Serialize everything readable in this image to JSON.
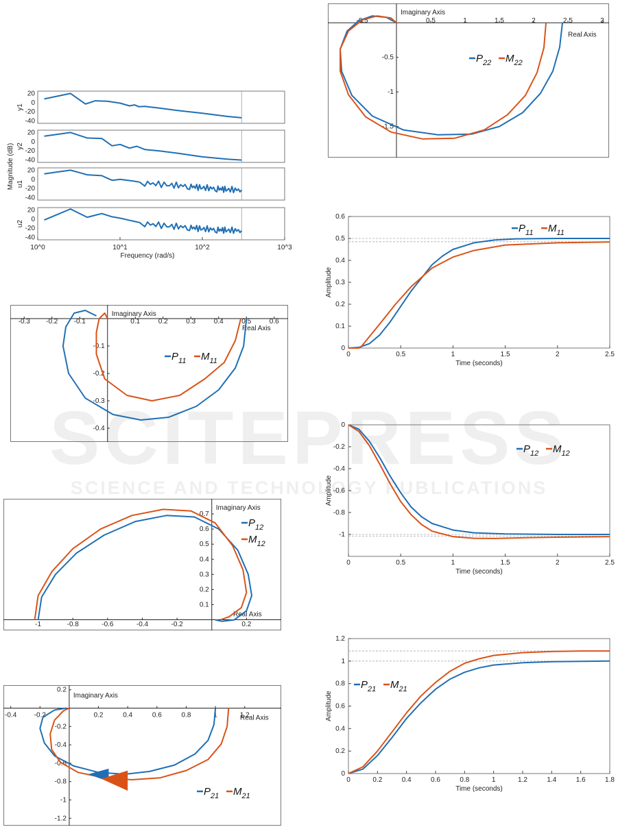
{
  "watermark": {
    "title": "SCITEPRESS",
    "subtitle": "SCIENCE AND TECHNOLOGY PUBLICATIONS"
  },
  "colors": {
    "blue": "#1f6fb4",
    "orange": "#d95319"
  },
  "chart_data": [
    {
      "id": "bode",
      "type": "line",
      "xscale": "log",
      "xlim": [
        1,
        1000
      ],
      "xlabel": "Frequency (rad/s)",
      "ylabel": "Magnitude (dB)",
      "x_ticks": [
        "10^0",
        "10^1",
        "10^2",
        "10^3"
      ],
      "y_ticks": [
        "20",
        "0",
        "-20",
        "-40"
      ],
      "ylim": [
        -45,
        25
      ],
      "subplots": [
        {
          "label": "y1",
          "x": [
            1.2,
            2.5,
            3.8,
            5,
            7,
            10,
            13,
            15,
            17,
            20,
            30,
            50,
            100,
            200,
            300
          ],
          "y": [
            8,
            20,
            -3,
            4,
            3,
            -1,
            -7,
            -5,
            -9,
            -8,
            -12,
            -17,
            -23,
            -30,
            -33
          ]
        },
        {
          "label": "y2",
          "x": [
            1.2,
            2.5,
            4,
            6,
            8,
            10,
            13,
            16,
            20,
            30,
            50,
            100,
            200,
            300
          ],
          "y": [
            12,
            20,
            8,
            7,
            -9,
            -6,
            -14,
            -10,
            -17,
            -20,
            -25,
            -33,
            -38,
            -40
          ]
        },
        {
          "label": "u1",
          "x": [
            1.2,
            2.5,
            4,
            6,
            8,
            10,
            15,
            20,
            40,
            70,
            100,
            150,
            200,
            300
          ],
          "y": [
            12,
            20,
            10,
            8,
            -2,
            0,
            -4,
            -8,
            -12,
            -15,
            -18,
            -20,
            -22,
            -23
          ]
        },
        {
          "label": "u2",
          "x": [
            1.2,
            2.5,
            4,
            6,
            8,
            10,
            15,
            20,
            40,
            70,
            100,
            150,
            200,
            300
          ],
          "y": [
            -2,
            22,
            4,
            12,
            5,
            2,
            -5,
            -10,
            -15,
            -18,
            -21,
            -23,
            -24,
            -25
          ]
        }
      ]
    },
    {
      "id": "nyq11",
      "type": "line",
      "xlabel": "Real Axis",
      "ylabel": "Imaginary Axis",
      "xlim": [
        -0.35,
        0.65
      ],
      "ylim": [
        -0.45,
        0.05
      ],
      "x_ticks": [
        "-0.3",
        "-0.2",
        "-0.1",
        "0",
        "0.1",
        "0.2",
        "0.3",
        "0.4",
        "0.5",
        "0.6"
      ],
      "y_ticks": [
        "-0.1",
        "-0.2",
        "-0.3",
        "-0.4"
      ],
      "series": [
        {
          "name": "P",
          "sub": "11",
          "color": "blue",
          "x": [
            0.5,
            0.49,
            0.46,
            0.4,
            0.32,
            0.22,
            0.12,
            0.02,
            -0.08,
            -0.14,
            -0.16,
            -0.15,
            -0.12,
            -0.08,
            -0.04
          ],
          "y": [
            0,
            -0.1,
            -0.18,
            -0.26,
            -0.32,
            -0.36,
            -0.37,
            -0.35,
            -0.29,
            -0.2,
            -0.1,
            -0.03,
            0.02,
            0.03,
            0.01
          ]
        },
        {
          "name": "M",
          "sub": "11",
          "color": "orange",
          "x": [
            0.48,
            0.46,
            0.42,
            0.35,
            0.26,
            0.16,
            0.07,
            -0.01,
            -0.04,
            -0.04,
            -0.03,
            -0.01,
            0.0
          ],
          "y": [
            0,
            -0.08,
            -0.16,
            -0.22,
            -0.28,
            -0.3,
            -0.28,
            -0.22,
            -0.13,
            -0.05,
            0.0,
            0.02,
            0.0
          ]
        }
      ]
    },
    {
      "id": "nyq12",
      "type": "line",
      "xlabel": "Real Axis",
      "ylabel": "Imaginary Axis",
      "xlim": [
        -1.2,
        0.4
      ],
      "ylim": [
        -0.07,
        0.8
      ],
      "x_ticks": [
        "-1",
        "-0.8",
        "-0.6",
        "-0.4",
        "-0.2",
        "0.2"
      ],
      "y_ticks": [
        "0.1",
        "0.2",
        "0.3",
        "0.4",
        "0.5",
        "0.6",
        "0.7"
      ],
      "series": [
        {
          "name": "P",
          "sub": "12",
          "color": "blue",
          "x": [
            -1.0,
            -0.98,
            -0.9,
            -0.78,
            -0.62,
            -0.44,
            -0.26,
            -0.1,
            0.04,
            0.15,
            0.21,
            0.23,
            0.2,
            0.13,
            0.06,
            0.02
          ],
          "y": [
            0,
            0.15,
            0.3,
            0.44,
            0.56,
            0.65,
            0.69,
            0.68,
            0.6,
            0.46,
            0.3,
            0.16,
            0.06,
            0.0,
            -0.01,
            0.0
          ]
        },
        {
          "name": "M",
          "sub": "12",
          "color": "orange",
          "x": [
            -1.02,
            -1.0,
            -0.92,
            -0.8,
            -0.64,
            -0.46,
            -0.28,
            -0.12,
            0.02,
            0.12,
            0.18,
            0.2,
            0.17,
            0.1,
            0.05
          ],
          "y": [
            0,
            0.16,
            0.32,
            0.47,
            0.6,
            0.69,
            0.73,
            0.72,
            0.64,
            0.49,
            0.33,
            0.18,
            0.08,
            0.02,
            0.0
          ]
        }
      ]
    },
    {
      "id": "nyq21",
      "type": "line",
      "xlabel": "Real Axis",
      "ylabel": "Imaginary Axis",
      "xlim": [
        -0.45,
        1.45
      ],
      "ylim": [
        -1.28,
        0.25
      ],
      "x_ticks": [
        "-0.4",
        "-0.2",
        "0.2",
        "0.4",
        "0.6",
        "0.8",
        "1",
        "1.2"
      ],
      "y_ticks": [
        "0.2",
        "-0.2",
        "-0.4",
        "-0.6",
        "-0.8",
        "-1",
        "-1.2"
      ],
      "series": [
        {
          "name": "P",
          "sub": "21",
          "color": "blue",
          "x": [
            1.0,
            0.99,
            0.95,
            0.86,
            0.72,
            0.55,
            0.38,
            0.2,
            0.03,
            -0.1,
            -0.17,
            -0.2,
            -0.18,
            -0.1,
            -0.02
          ],
          "y": [
            0,
            -0.18,
            -0.35,
            -0.5,
            -0.62,
            -0.69,
            -0.72,
            -0.7,
            -0.63,
            -0.52,
            -0.38,
            -0.22,
            -0.1,
            -0.02,
            0.0
          ]
        },
        {
          "name": "M",
          "sub": "21",
          "color": "orange",
          "x": [
            1.09,
            1.08,
            1.04,
            0.95,
            0.8,
            0.62,
            0.43,
            0.24,
            0.06,
            -0.06,
            -0.12,
            -0.13,
            -0.1,
            -0.04,
            0.0
          ],
          "y": [
            0,
            -0.2,
            -0.39,
            -0.56,
            -0.68,
            -0.76,
            -0.78,
            -0.76,
            -0.7,
            -0.59,
            -0.45,
            -0.28,
            -0.13,
            -0.03,
            0.0
          ]
        }
      ]
    },
    {
      "id": "nyq22",
      "type": "line",
      "xlabel": "Real Axis",
      "ylabel": "Imaginary Axis",
      "xlim": [
        -1.0,
        3.1
      ],
      "ylim": [
        -1.95,
        0.28
      ],
      "x_ticks": [
        "-0.5",
        "0.5",
        "1",
        "1.5",
        "2",
        "2.5",
        "3"
      ],
      "y_ticks": [
        "-0.5",
        "-1",
        "-1.5"
      ],
      "series": [
        {
          "name": "P",
          "sub": "22",
          "color": "blue",
          "x": [
            2.42,
            2.38,
            2.28,
            2.1,
            1.84,
            1.5,
            1.1,
            0.6,
            0.1,
            -0.35,
            -0.65,
            -0.8,
            -0.82,
            -0.72,
            -0.55,
            -0.35,
            -0.15,
            0.0
          ],
          "y": [
            0,
            -0.35,
            -0.7,
            -1.02,
            -1.3,
            -1.5,
            -1.61,
            -1.62,
            -1.55,
            -1.35,
            -1.05,
            -0.7,
            -0.38,
            -0.12,
            0.03,
            0.1,
            0.08,
            0.0
          ]
        },
        {
          "name": "M",
          "sub": "22",
          "color": "orange",
          "x": [
            2.18,
            2.15,
            2.05,
            1.88,
            1.62,
            1.28,
            0.85,
            0.38,
            -0.08,
            -0.45,
            -0.7,
            -0.82,
            -0.82,
            -0.7,
            -0.5,
            -0.28,
            -0.08,
            0.0
          ],
          "y": [
            0,
            -0.36,
            -0.72,
            -1.05,
            -1.33,
            -1.55,
            -1.67,
            -1.68,
            -1.58,
            -1.36,
            -1.04,
            -0.7,
            -0.38,
            -0.12,
            0.04,
            0.1,
            0.07,
            0.0
          ]
        }
      ]
    },
    {
      "id": "step11",
      "type": "line",
      "xlabel": "Time (seconds)",
      "ylabel": "Amplitude",
      "xlim": [
        0,
        2.5
      ],
      "ylim": [
        0,
        0.6
      ],
      "x_ticks": [
        "0",
        "0.5",
        "1",
        "1.5",
        "2",
        "2.5"
      ],
      "y_ticks": [
        "0",
        "0.1",
        "0.2",
        "0.3",
        "0.4",
        "0.5",
        "0.6"
      ],
      "ref_lines": [
        0.5,
        0.485
      ],
      "series": [
        {
          "name": "P",
          "sub": "11",
          "color": "blue",
          "x": [
            0,
            0.1,
            0.2,
            0.3,
            0.4,
            0.5,
            0.6,
            0.7,
            0.8,
            0.9,
            1.0,
            1.2,
            1.4,
            1.6,
            2.0,
            2.5
          ],
          "y": [
            0,
            0.003,
            0.02,
            0.06,
            0.12,
            0.19,
            0.26,
            0.32,
            0.38,
            0.42,
            0.45,
            0.48,
            0.493,
            0.498,
            0.5,
            0.5
          ]
        },
        {
          "name": "M",
          "sub": "11",
          "color": "orange",
          "x": [
            0,
            0.1,
            0.12,
            0.3,
            0.45,
            0.6,
            0.8,
            1.0,
            1.2,
            1.5,
            2.0,
            2.5
          ],
          "y": [
            0,
            0,
            0.005,
            0.11,
            0.2,
            0.28,
            0.365,
            0.415,
            0.445,
            0.47,
            0.48,
            0.484
          ]
        }
      ]
    },
    {
      "id": "step12",
      "type": "line",
      "xlabel": "Time (seconds)",
      "ylabel": "Amplitude",
      "xlim": [
        0,
        2.5
      ],
      "ylim": [
        -1.2,
        0
      ],
      "x_ticks": [
        "0",
        "0.5",
        "1",
        "1.5",
        "2",
        "2.5"
      ],
      "y_ticks": [
        "0",
        "-0.2",
        "-0.4",
        "-0.6",
        "-0.8",
        "-1"
      ],
      "ref_lines": [
        -1.0,
        -1.015
      ],
      "series": [
        {
          "name": "P",
          "sub": "12",
          "color": "blue",
          "x": [
            0,
            0.1,
            0.2,
            0.3,
            0.4,
            0.5,
            0.6,
            0.7,
            0.8,
            1.0,
            1.2,
            1.5,
            2.0,
            2.5
          ],
          "y": [
            0,
            -0.04,
            -0.15,
            -0.3,
            -0.47,
            -0.62,
            -0.75,
            -0.84,
            -0.9,
            -0.96,
            -0.985,
            -0.995,
            -1.0,
            -1.0
          ]
        },
        {
          "name": "M",
          "sub": "12",
          "color": "orange",
          "x": [
            0,
            0.1,
            0.2,
            0.3,
            0.4,
            0.5,
            0.6,
            0.7,
            0.8,
            1.0,
            1.2,
            1.4,
            1.7,
            2.0,
            2.5
          ],
          "y": [
            0,
            -0.06,
            -0.19,
            -0.36,
            -0.54,
            -0.7,
            -0.82,
            -0.91,
            -0.97,
            -1.02,
            -1.035,
            -1.037,
            -1.03,
            -1.025,
            -1.02
          ]
        }
      ]
    },
    {
      "id": "step21",
      "type": "line",
      "xlabel": "Time (seconds)",
      "ylabel": "Amplitude",
      "xlim": [
        0,
        1.8
      ],
      "ylim": [
        0,
        1.2
      ],
      "x_ticks": [
        "0",
        "0.2",
        "0.4",
        "0.6",
        "0.8",
        "1",
        "1.2",
        "1.4",
        "1.6",
        "1.8"
      ],
      "y_ticks": [
        "0",
        "0.2",
        "0.4",
        "0.6",
        "0.8",
        "1",
        "1.2"
      ],
      "ref_lines": [
        1.0,
        1.09
      ],
      "series": [
        {
          "name": "P",
          "sub": "21",
          "color": "blue",
          "x": [
            0,
            0.1,
            0.2,
            0.3,
            0.4,
            0.5,
            0.6,
            0.7,
            0.8,
            0.9,
            1.0,
            1.2,
            1.4,
            1.6,
            1.8
          ],
          "y": [
            0,
            0.04,
            0.16,
            0.32,
            0.49,
            0.63,
            0.75,
            0.84,
            0.9,
            0.94,
            0.965,
            0.985,
            0.995,
            0.998,
            1.0
          ]
        },
        {
          "name": "M",
          "sub": "21",
          "color": "orange",
          "x": [
            0,
            0.1,
            0.2,
            0.3,
            0.4,
            0.5,
            0.6,
            0.7,
            0.8,
            0.9,
            1.0,
            1.2,
            1.4,
            1.6,
            1.8
          ],
          "y": [
            0,
            0.06,
            0.2,
            0.37,
            0.54,
            0.69,
            0.81,
            0.91,
            0.98,
            1.02,
            1.05,
            1.075,
            1.085,
            1.09,
            1.09
          ]
        }
      ]
    }
  ]
}
